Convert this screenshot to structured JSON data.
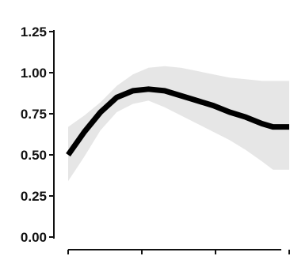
{
  "chart_data": {
    "type": "line",
    "title": "",
    "xlabel": "",
    "ylabel": "",
    "ylim": [
      0.0,
      1.25
    ],
    "xlim": [
      0,
      3
    ],
    "yticks": [
      "0.00",
      "0.25",
      "0.50",
      "0.75",
      "1.00",
      "1.25"
    ],
    "xticks": [
      "",
      "",
      "",
      ""
    ],
    "grid": false,
    "legend": "none",
    "colors": {
      "line": "#000000",
      "band": "#e6e6e6",
      "axis": "#111111"
    },
    "series": [
      {
        "x": [
          0,
          0.22,
          0.44,
          0.66,
          0.88,
          1.09,
          1.31,
          1.53,
          1.75,
          1.97,
          2.19,
          2.41,
          2.63,
          2.78,
          3.0
        ],
        "y": [
          0.5,
          0.64,
          0.76,
          0.85,
          0.89,
          0.9,
          0.89,
          0.86,
          0.83,
          0.8,
          0.76,
          0.73,
          0.69,
          0.67,
          0.67
        ],
        "lower": [
          0.34,
          0.49,
          0.65,
          0.76,
          0.81,
          0.83,
          0.79,
          0.74,
          0.69,
          0.64,
          0.59,
          0.53,
          0.46,
          0.41,
          0.41
        ],
        "upper": [
          0.67,
          0.74,
          0.82,
          0.92,
          0.99,
          1.03,
          1.04,
          1.03,
          1.01,
          0.99,
          0.97,
          0.96,
          0.95,
          0.95,
          0.95
        ]
      }
    ]
  }
}
